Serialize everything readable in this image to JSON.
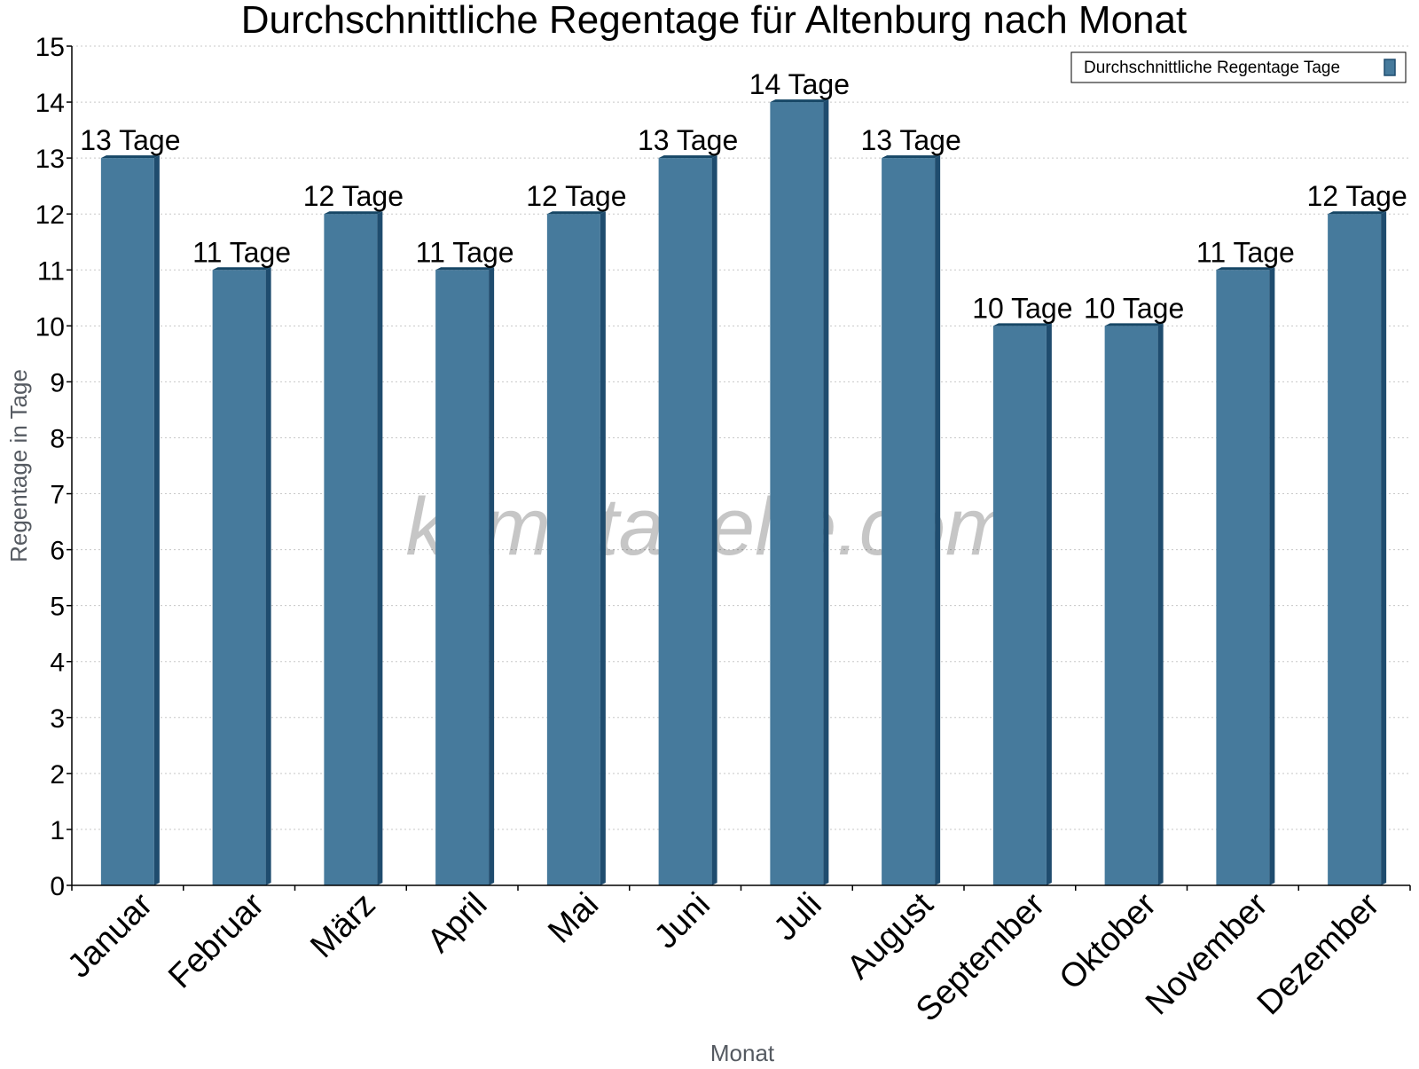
{
  "chart_data": {
    "type": "bar",
    "title": "Durchschnittliche Regentage für Altenburg nach Monat",
    "xlabel": "Monat",
    "ylabel": "Regentage in Tage",
    "categories": [
      "Januar",
      "Februar",
      "März",
      "April",
      "Mai",
      "Juni",
      "Juli",
      "August",
      "September",
      "Oktober",
      "November",
      "Dezember"
    ],
    "series": [
      {
        "name": "Durchschnittliche Regentage Tage",
        "values": [
          13,
          11,
          12,
          11,
          12,
          13,
          14,
          13,
          10,
          10,
          11,
          12
        ]
      }
    ],
    "data_labels": [
      "13 Tage",
      "11 Tage",
      "12 Tage",
      "11 Tage",
      "12 Tage",
      "13 Tage",
      "14 Tage",
      "13 Tage",
      "10 Tage",
      "10 Tage",
      "11 Tage",
      "12 Tage"
    ],
    "ylim": [
      0,
      15
    ],
    "yticks": [
      0,
      1,
      2,
      3,
      4,
      5,
      6,
      7,
      8,
      9,
      10,
      11,
      12,
      13,
      14,
      15
    ],
    "grid": true,
    "legend_position": "top-right",
    "watermark": "klimatabelle.com",
    "colors": {
      "bar": "#467a9c",
      "bar_side": "#1f4c6e",
      "bar_top": "#174766",
      "grid": "#c8c8c8",
      "axis": "#000000"
    }
  }
}
